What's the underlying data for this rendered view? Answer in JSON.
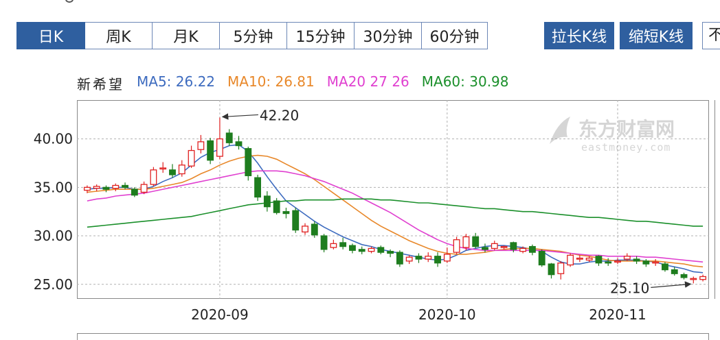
{
  "tabs": [
    {
      "label": "日K",
      "active": true
    },
    {
      "label": "周K",
      "active": false
    },
    {
      "label": "月K",
      "active": false
    },
    {
      "label": "5分钟",
      "active": false
    },
    {
      "label": "15分钟",
      "active": false
    },
    {
      "label": "30分钟",
      "active": false
    },
    {
      "label": "60分钟",
      "active": false
    }
  ],
  "buttons": {
    "stretch": "拉长K线",
    "shrink": "缩短K线",
    "stub": "不"
  },
  "legend": {
    "name": "新希望",
    "ma5": "MA5: 26.22",
    "ma10": "MA10: 26.81",
    "ma20": "MA20  27 26",
    "ma60": "MA60: 30.98"
  },
  "watermark": {
    "brand": "东方财富网",
    "url": "eastmoney.com"
  },
  "colors": {
    "ma5": "#3d6bbf",
    "ma10": "#e8882a",
    "ma20": "#e040d0",
    "ma60": "#1a8f2a",
    "up": "#e02020",
    "down": "#1e7d1e",
    "accent": "#2f5f9f"
  },
  "chart_data": {
    "type": "candlestick",
    "ylim": [
      23.5,
      44.0
    ],
    "yticks": [
      25,
      30,
      35,
      40
    ],
    "ytick_labels": [
      "25.00",
      "30.00",
      "35.00",
      "40.00"
    ],
    "xtick_labels": [
      "2020-09",
      "2020-10",
      "2020-11"
    ],
    "xtick_index": [
      14,
      38,
      56
    ],
    "annotations": [
      {
        "text": "42.20",
        "index": 14,
        "value": 42.2
      },
      {
        "text": "25.10",
        "index": 64,
        "value": 25.1
      }
    ],
    "candles": [
      [
        34.7,
        35.0,
        35.2,
        34.4
      ],
      [
        34.9,
        35.1,
        35.3,
        34.6
      ],
      [
        35.0,
        34.8,
        35.2,
        34.5
      ],
      [
        34.9,
        35.2,
        35.4,
        34.6
      ],
      [
        35.2,
        35.0,
        35.5,
        34.8
      ],
      [
        34.8,
        34.2,
        35.0,
        34.0
      ],
      [
        34.5,
        35.3,
        35.6,
        34.3
      ],
      [
        35.3,
        36.8,
        37.1,
        35.1
      ],
      [
        37.0,
        37.0,
        37.6,
        36.5
      ],
      [
        36.8,
        36.3,
        37.4,
        36.0
      ],
      [
        36.4,
        37.3,
        37.8,
        36.1
      ],
      [
        37.2,
        38.8,
        39.3,
        37.0
      ],
      [
        38.9,
        39.7,
        40.4,
        38.5
      ],
      [
        39.8,
        37.8,
        40.1,
        37.4
      ],
      [
        38.2,
        40.0,
        42.2,
        37.9
      ],
      [
        40.6,
        39.6,
        41.0,
        39.3
      ],
      [
        39.7,
        39.3,
        40.3,
        38.9
      ],
      [
        39.0,
        36.2,
        39.2,
        35.7
      ],
      [
        36.0,
        34.0,
        36.3,
        33.6
      ],
      [
        34.1,
        33.0,
        34.6,
        32.5
      ],
      [
        33.6,
        32.4,
        33.9,
        32.2
      ],
      [
        32.5,
        32.3,
        32.9,
        31.8
      ],
      [
        32.6,
        30.6,
        32.9,
        30.3
      ],
      [
        30.4,
        31.0,
        31.3,
        30.1
      ],
      [
        31.2,
        30.1,
        31.5,
        29.8
      ],
      [
        30.0,
        28.6,
        30.2,
        28.3
      ],
      [
        28.8,
        29.2,
        29.6,
        28.6
      ],
      [
        29.3,
        28.9,
        29.8,
        28.6
      ],
      [
        29.0,
        28.5,
        29.2,
        28.2
      ],
      [
        28.6,
        28.4,
        28.9,
        28.1
      ],
      [
        28.4,
        28.7,
        28.9,
        28.2
      ],
      [
        28.8,
        28.3,
        29.0,
        28.1
      ],
      [
        28.4,
        28.2,
        28.6,
        27.8
      ],
      [
        28.3,
        27.1,
        28.5,
        26.8
      ],
      [
        27.4,
        27.8,
        28.0,
        27.1
      ],
      [
        27.9,
        27.6,
        28.2,
        27.2
      ],
      [
        27.6,
        27.9,
        28.3,
        27.3
      ],
      [
        27.9,
        27.2,
        28.3,
        26.8
      ],
      [
        27.4,
        28.1,
        28.8,
        27.2
      ],
      [
        28.3,
        29.6,
        29.9,
        28.1
      ],
      [
        28.8,
        29.9,
        30.2,
        28.5
      ],
      [
        29.9,
        28.9,
        30.3,
        28.7
      ],
      [
        28.8,
        28.6,
        29.2,
        28.3
      ],
      [
        28.7,
        29.2,
        29.5,
        28.5
      ],
      [
        28.8,
        28.9,
        29.0,
        28.6
      ],
      [
        29.3,
        28.6,
        29.4,
        28.3
      ],
      [
        28.4,
        28.7,
        28.9,
        28.2
      ],
      [
        28.9,
        28.3,
        29.1,
        28.0
      ],
      [
        28.4,
        27.0,
        28.6,
        26.8
      ],
      [
        27.1,
        26.0,
        27.2,
        25.6
      ],
      [
        26.1,
        27.2,
        27.4,
        25.5
      ],
      [
        27.0,
        28.0,
        28.2,
        26.8
      ],
      [
        27.6,
        27.7,
        28.0,
        27.3
      ],
      [
        27.5,
        27.7,
        27.9,
        27.3
      ],
      [
        27.9,
        27.2,
        28.0,
        26.9
      ],
      [
        27.3,
        27.2,
        27.7,
        26.9
      ],
      [
        27.3,
        27.4,
        27.7,
        27.1
      ],
      [
        27.6,
        27.9,
        28.2,
        27.4
      ],
      [
        27.6,
        27.4,
        27.9,
        27.1
      ],
      [
        27.4,
        27.1,
        27.6,
        26.8
      ],
      [
        27.2,
        27.3,
        27.6,
        26.9
      ],
      [
        27.1,
        26.5,
        27.3,
        26.3
      ],
      [
        26.5,
        26.1,
        26.8,
        25.9
      ],
      [
        26.0,
        25.7,
        26.2,
        25.5
      ],
      [
        25.6,
        25.6,
        25.8,
        25.1
      ],
      [
        25.5,
        25.8,
        26.0,
        25.3
      ]
    ],
    "series": [
      {
        "name": "MA5",
        "values": [
          34.8,
          34.9,
          34.9,
          35.0,
          35.0,
          34.8,
          34.8,
          35.1,
          35.6,
          36.0,
          36.5,
          37.3,
          38.1,
          38.6,
          38.9,
          39.3,
          39.4,
          38.7,
          37.5,
          36.1,
          34.8,
          33.6,
          32.9,
          32.2,
          31.5,
          30.9,
          30.4,
          29.9,
          29.5,
          29.1,
          28.9,
          28.6,
          28.4,
          28.2,
          28.0,
          27.8,
          27.6,
          27.5,
          27.6,
          28.0,
          28.5,
          28.7,
          28.9,
          29.0,
          29.0,
          28.9,
          28.8,
          28.6,
          28.4,
          27.8,
          27.3,
          27.1,
          27.1,
          27.3,
          27.4,
          27.4,
          27.5,
          27.5,
          27.5,
          27.4,
          27.3,
          27.0,
          26.8,
          26.6,
          26.3,
          26.2
        ]
      },
      {
        "name": "MA10",
        "values": [
          34.5,
          34.6,
          34.7,
          34.8,
          34.8,
          34.8,
          34.8,
          34.9,
          35.1,
          35.3,
          35.5,
          35.9,
          36.4,
          36.8,
          37.3,
          37.7,
          38.0,
          38.2,
          38.3,
          38.2,
          37.9,
          37.4,
          36.9,
          36.4,
          35.8,
          35.1,
          34.4,
          33.7,
          33.0,
          32.3,
          31.6,
          31.0,
          30.5,
          30.0,
          29.5,
          29.1,
          28.7,
          28.4,
          28.2,
          28.1,
          28.1,
          28.2,
          28.3,
          28.5,
          28.6,
          28.7,
          28.7,
          28.7,
          28.6,
          28.5,
          28.4,
          28.2,
          28.0,
          27.9,
          27.7,
          27.5,
          27.4,
          27.4,
          27.4,
          27.4,
          27.4,
          27.3,
          27.2,
          27.1,
          26.9,
          26.8
        ]
      },
      {
        "name": "MA20",
        "values": [
          33.6,
          33.8,
          33.9,
          34.1,
          34.2,
          34.3,
          34.4,
          34.6,
          34.8,
          35.0,
          35.2,
          35.4,
          35.6,
          35.8,
          36.0,
          36.2,
          36.4,
          36.6,
          36.7,
          36.7,
          36.7,
          36.6,
          36.4,
          36.2,
          35.9,
          35.6,
          35.2,
          34.8,
          34.4,
          33.9,
          33.4,
          32.9,
          32.4,
          31.8,
          31.2,
          30.6,
          30.1,
          29.6,
          29.2,
          28.9,
          28.7,
          28.6,
          28.5,
          28.5,
          28.5,
          28.5,
          28.5,
          28.5,
          28.5,
          28.4,
          28.3,
          28.2,
          28.1,
          28.0,
          28.0,
          27.9,
          27.9,
          27.9,
          27.9,
          27.8,
          27.8,
          27.7,
          27.6,
          27.5,
          27.4,
          27.3
        ]
      },
      {
        "name": "MA60",
        "values": [
          30.9,
          31.0,
          31.1,
          31.2,
          31.3,
          31.4,
          31.5,
          31.6,
          31.7,
          31.8,
          31.9,
          32.0,
          32.2,
          32.4,
          32.6,
          32.8,
          33.0,
          33.2,
          33.3,
          33.4,
          33.5,
          33.6,
          33.6,
          33.7,
          33.7,
          33.7,
          33.7,
          33.8,
          33.8,
          33.8,
          33.8,
          33.7,
          33.7,
          33.6,
          33.5,
          33.4,
          33.4,
          33.3,
          33.2,
          33.1,
          33.0,
          32.9,
          32.8,
          32.8,
          32.7,
          32.6,
          32.5,
          32.5,
          32.4,
          32.3,
          32.2,
          32.1,
          32.0,
          31.9,
          31.9,
          31.8,
          31.7,
          31.6,
          31.5,
          31.5,
          31.4,
          31.3,
          31.2,
          31.1,
          31.0,
          31.0
        ]
      }
    ]
  }
}
